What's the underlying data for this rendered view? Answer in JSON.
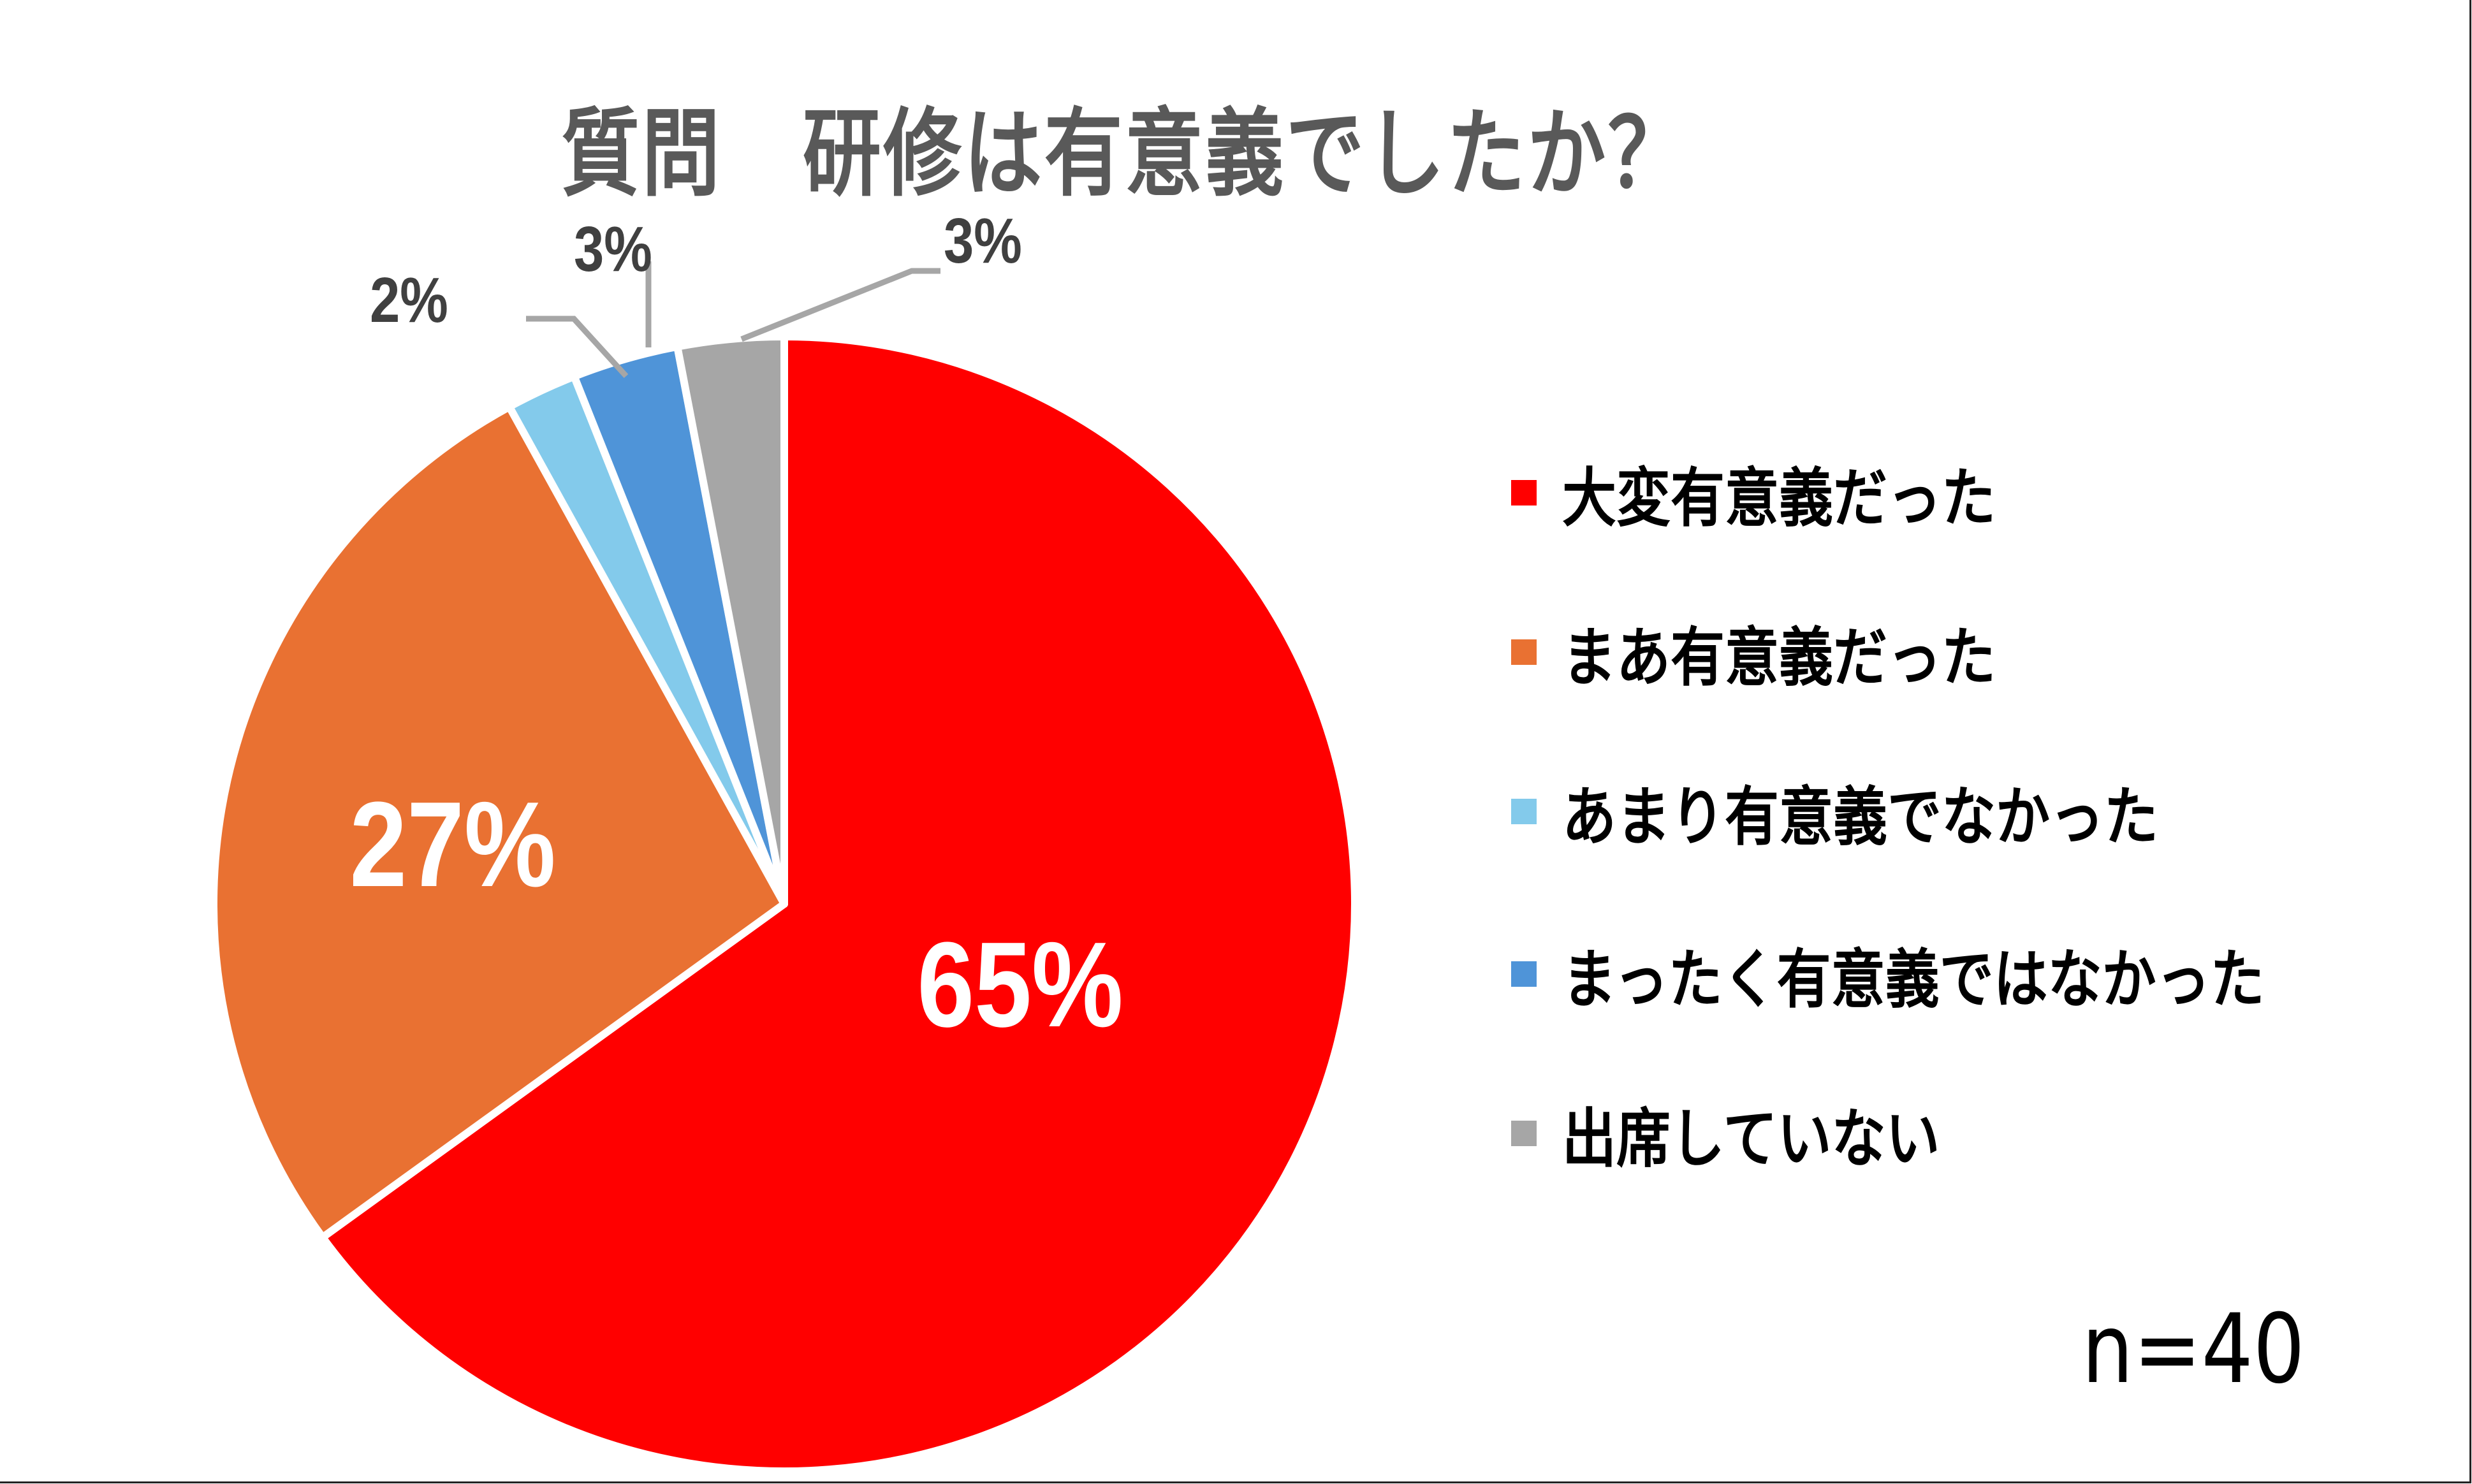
{
  "title": "質問　研修は有意義でしたか？",
  "sample_size_label": "n=40",
  "colors": {
    "very_meaningful": "#FF0000",
    "somewhat_meaningful": "#E97132",
    "not_very_meaningful": "#83CAEB",
    "not_at_all_meaningful": "#4F94D8",
    "did_not_attend": "#A6A6A6",
    "title_text": "#595959",
    "leader_line": "#A6A6A6"
  },
  "legend": {
    "items": [
      {
        "label": "大変有意義だった",
        "color": "#FF0000"
      },
      {
        "label": "まあ有意義だった",
        "color": "#E97132"
      },
      {
        "label": "あまり有意義でなかった",
        "color": "#83CAEB"
      },
      {
        "label": "まったく有意義ではなかった",
        "color": "#4F94D8"
      },
      {
        "label": "出席していない",
        "color": "#A6A6A6"
      }
    ]
  },
  "data_labels": {
    "very_meaningful": "65%",
    "somewhat_meaningful": "27%",
    "not_very_meaningful": "2%",
    "not_at_all_meaningful": "3%",
    "did_not_attend": "3%"
  },
  "chart_data": {
    "type": "pie",
    "title": "質問　研修は有意義でしたか？",
    "categories": [
      "大変有意義だった",
      "まあ有意義だった",
      "あまり有意義でなかった",
      "まったく有意義ではなかった",
      "出席していない"
    ],
    "values": [
      65,
      27,
      2,
      3,
      3
    ],
    "value_labels": [
      "65%",
      "27%",
      "2%",
      "3%",
      "3%"
    ],
    "colors": [
      "#FF0000",
      "#E97132",
      "#83CAEB",
      "#4F94D8",
      "#A6A6A6"
    ],
    "start_angle": "12 o'clock",
    "direction": "clockwise",
    "legend_position": "right",
    "annotation": "n=40"
  }
}
